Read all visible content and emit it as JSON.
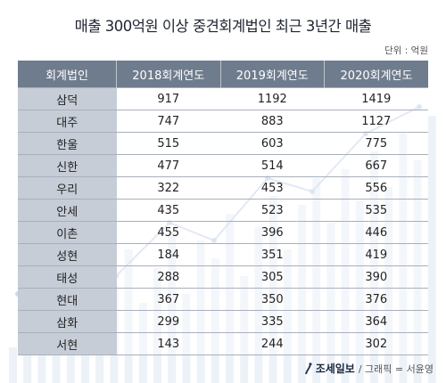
{
  "title": "매출 300억원 이상 중견회계법인  최근 3년간 매출",
  "unit": "단위 : 억원",
  "chart_data": {
    "type": "table",
    "columns": [
      "회계법인",
      "2018회계연도",
      "2019회계연도",
      "2020회계연도"
    ],
    "rows": [
      {
        "name": "삼덕",
        "values": [
          917,
          1192,
          1419
        ]
      },
      {
        "name": "대주",
        "values": [
          747,
          883,
          1127
        ]
      },
      {
        "name": "한울",
        "values": [
          515,
          603,
          775
        ]
      },
      {
        "name": "신한",
        "values": [
          477,
          514,
          667
        ]
      },
      {
        "name": "우리",
        "values": [
          322,
          453,
          556
        ]
      },
      {
        "name": "안세",
        "values": [
          435,
          523,
          535
        ]
      },
      {
        "name": "이촌",
        "values": [
          455,
          396,
          446
        ]
      },
      {
        "name": "성현",
        "values": [
          184,
          351,
          419
        ]
      },
      {
        "name": "태성",
        "values": [
          288,
          305,
          390
        ]
      },
      {
        "name": "현대",
        "values": [
          367,
          350,
          376
        ]
      },
      {
        "name": "삼화",
        "values": [
          299,
          335,
          364
        ]
      },
      {
        "name": "서현",
        "values": [
          143,
          244,
          302
        ]
      }
    ]
  },
  "footer": {
    "brand": "조세일보",
    "credit": "/ 그래픽 = 서윤영"
  },
  "colors": {
    "header_bg": "#6f7c8d",
    "rowhead_bg": "#c6cdd7",
    "border": "#a9b0bb",
    "background_graphic": "#dfe7f3"
  }
}
